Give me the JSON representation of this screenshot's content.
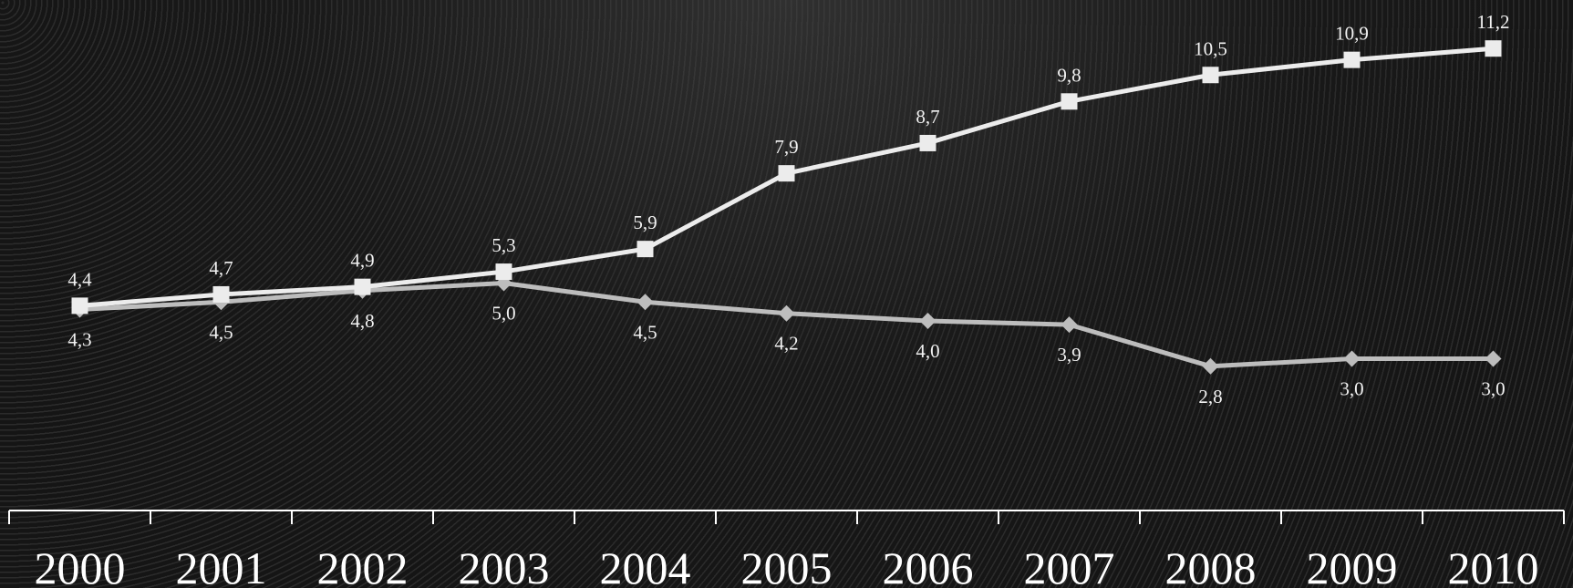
{
  "chart_data": {
    "type": "line",
    "title": "",
    "xlabel": "",
    "ylabel": "",
    "categories": [
      "2000",
      "2001",
      "2002",
      "2003",
      "2004",
      "2005",
      "2006",
      "2007",
      "2008",
      "2009",
      "2010"
    ],
    "ylim": [
      0,
      12
    ],
    "grid": false,
    "legend": "none",
    "series": [
      {
        "marker": "square",
        "color": "#ececec",
        "values": [
          4.4,
          4.7,
          4.9,
          5.3,
          5.9,
          7.9,
          8.7,
          9.8,
          10.5,
          10.9,
          11.2
        ],
        "labels": [
          "4,4",
          "4,7",
          "4,9",
          "5,3",
          "5,9",
          "7,9",
          "8,7",
          "9,8",
          "10,5",
          "10,9",
          "11,2"
        ]
      },
      {
        "marker": "diamond",
        "color": "#bdbdbd",
        "values": [
          4.3,
          4.5,
          4.8,
          5.0,
          4.5,
          4.2,
          4.0,
          3.9,
          2.8,
          3.0,
          3.0
        ],
        "labels": [
          "4,3",
          "4,5",
          "4,8",
          "5,0",
          "4,5",
          "4,2",
          "4,0",
          "3,9",
          "2,8",
          "3,0",
          "3,0"
        ]
      }
    ]
  }
}
